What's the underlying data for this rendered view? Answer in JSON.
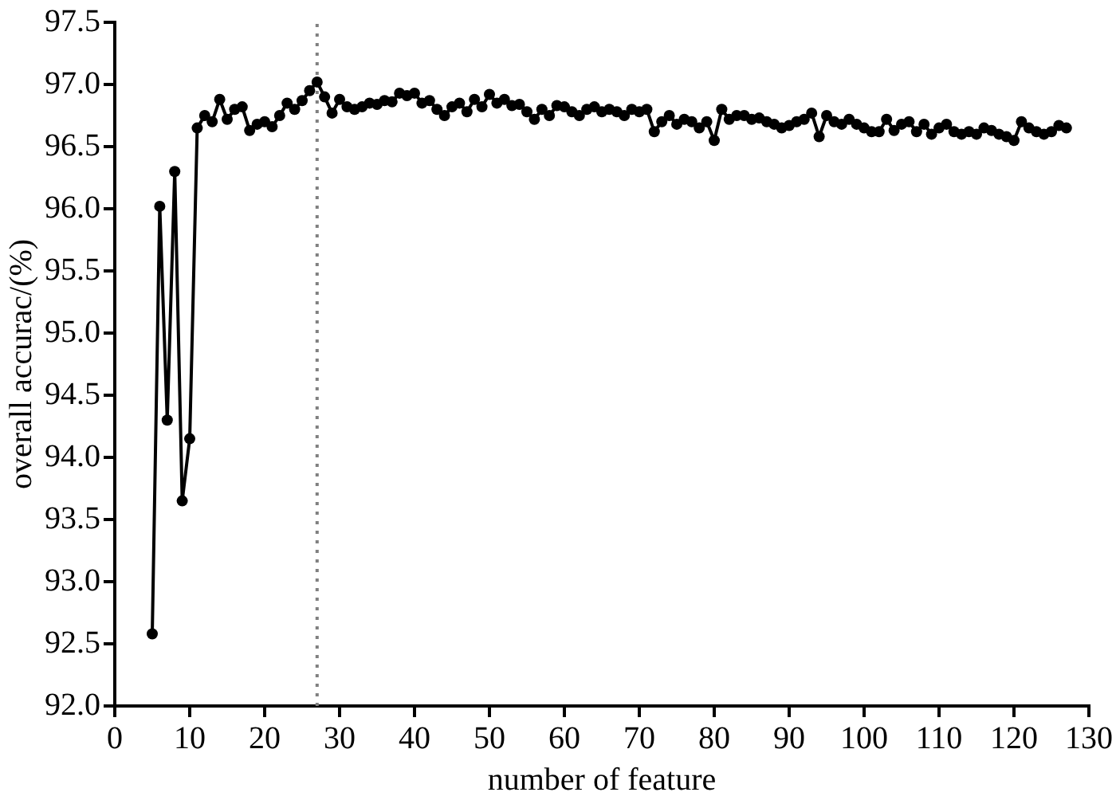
{
  "chart_data": {
    "type": "line",
    "xlabel": "number of feature",
    "ylabel": "overall accurac/(%)",
    "x": [
      5,
      6,
      7,
      8,
      9,
      10,
      11,
      12,
      13,
      14,
      15,
      16,
      17,
      18,
      19,
      20,
      21,
      22,
      23,
      24,
      25,
      26,
      27,
      28,
      29,
      30,
      31,
      32,
      33,
      34,
      35,
      36,
      37,
      38,
      39,
      40,
      41,
      42,
      43,
      44,
      45,
      46,
      47,
      48,
      49,
      50,
      51,
      52,
      53,
      54,
      55,
      56,
      57,
      58,
      59,
      60,
      61,
      62,
      63,
      64,
      65,
      66,
      67,
      68,
      69,
      70,
      71,
      72,
      73,
      74,
      75,
      76,
      77,
      78,
      79,
      80,
      81,
      82,
      83,
      84,
      85,
      86,
      87,
      88,
      89,
      90,
      91,
      92,
      93,
      94,
      95,
      96,
      97,
      98,
      99,
      100,
      101,
      102,
      103,
      104,
      105,
      106,
      107,
      108,
      109,
      110,
      111,
      112,
      113,
      114,
      115,
      116,
      117,
      118,
      119,
      120,
      121,
      122,
      123,
      124,
      125,
      126,
      127
    ],
    "series": [
      {
        "color": "#000000",
        "values": [
          92.58,
          96.02,
          94.3,
          96.3,
          93.65,
          94.15,
          96.65,
          96.75,
          96.7,
          96.88,
          96.72,
          96.8,
          96.82,
          96.63,
          96.68,
          96.7,
          96.66,
          96.75,
          96.85,
          96.8,
          96.87,
          96.95,
          97.02,
          96.9,
          96.77,
          96.88,
          96.82,
          96.8,
          96.82,
          96.85,
          96.84,
          96.87,
          96.86,
          96.93,
          96.91,
          96.93,
          96.85,
          96.87,
          96.8,
          96.75,
          96.82,
          96.85,
          96.78,
          96.88,
          96.82,
          96.92,
          96.85,
          96.88,
          96.83,
          96.84,
          96.78,
          96.72,
          96.8,
          96.75,
          96.83,
          96.82,
          96.78,
          96.75,
          96.8,
          96.82,
          96.78,
          96.8,
          96.78,
          96.75,
          96.8,
          96.78,
          96.8,
          96.62,
          96.7,
          96.75,
          96.68,
          96.72,
          96.7,
          96.65,
          96.7,
          96.55,
          96.8,
          96.72,
          96.75,
          96.75,
          96.72,
          96.73,
          96.7,
          96.68,
          96.65,
          96.67,
          96.7,
          96.72,
          96.77,
          96.58,
          96.75,
          96.7,
          96.68,
          96.72,
          96.68,
          96.65,
          96.62,
          96.62,
          96.72,
          96.63,
          96.68,
          96.7,
          96.62,
          96.68,
          96.6,
          96.65,
          96.68,
          96.62,
          96.6,
          96.62,
          96.6,
          96.65,
          96.63,
          96.6,
          96.58,
          96.55,
          96.7,
          96.65,
          96.62,
          96.6,
          96.62,
          96.67,
          96.65
        ]
      }
    ],
    "xlim": [
      0,
      130
    ],
    "xticks": [
      0,
      10,
      20,
      30,
      40,
      50,
      60,
      70,
      80,
      90,
      100,
      110,
      120,
      130
    ],
    "ylim": [
      92,
      97.5
    ],
    "yticks": [
      {
        "value": 92,
        "label": "92.0"
      },
      92.5,
      {
        "value": 93,
        "label": "93.0"
      },
      93.5,
      {
        "value": 94,
        "label": "94.0"
      },
      94.5,
      {
        "value": 95,
        "label": "95.0"
      },
      95.5,
      {
        "value": 96,
        "label": "96.0"
      },
      96.5,
      {
        "value": 97,
        "label": "97.0"
      },
      97.5
    ],
    "marker": "circle",
    "line_style": "solid",
    "grid": false,
    "ref_lines": [
      {
        "axis": "x",
        "value": 27,
        "color": "#808080",
        "line_style": "dotted"
      }
    ]
  }
}
